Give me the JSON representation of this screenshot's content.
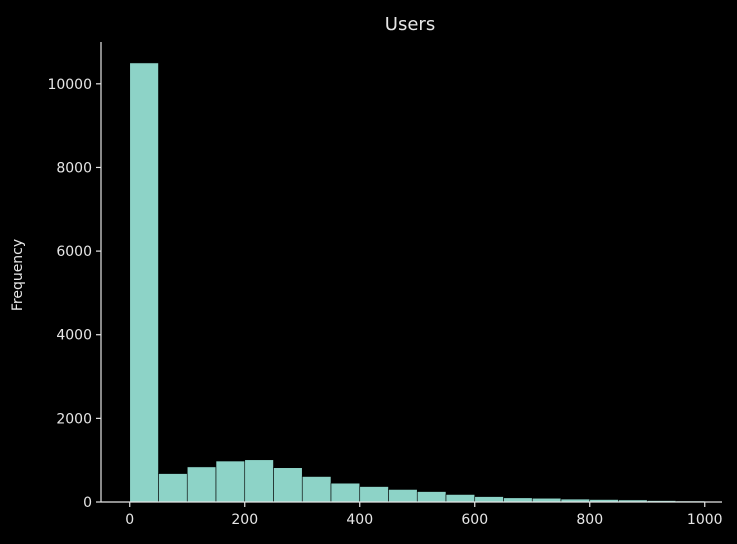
{
  "chart_data": {
    "type": "bar",
    "title": "Users",
    "xlabel": "",
    "ylabel": "Frequency",
    "xlim": [
      -50,
      1030
    ],
    "ylim": [
      0,
      11000
    ],
    "x_ticks": [
      "0",
      "200",
      "400",
      "600",
      "800",
      "1000"
    ],
    "y_ticks": [
      "0",
      "2000",
      "4000",
      "6000",
      "8000",
      "10000"
    ],
    "bin_edges": [
      0,
      50,
      100,
      150,
      200,
      250,
      300,
      350,
      400,
      450,
      500,
      550,
      600,
      650,
      700,
      750,
      800,
      850,
      900,
      950,
      1000
    ],
    "values": [
      10500,
      680,
      840,
      980,
      1010,
      820,
      610,
      450,
      370,
      300,
      250,
      180,
      130,
      100,
      90,
      70,
      60,
      50,
      35,
      25
    ],
    "grid": false,
    "legend": "none"
  },
  "colors": {
    "background": "#000000",
    "bar_fill": "#8dd3c7",
    "bar_edge": "#000000",
    "axis": "#e6e6e6",
    "text": "#e6e6e6"
  }
}
